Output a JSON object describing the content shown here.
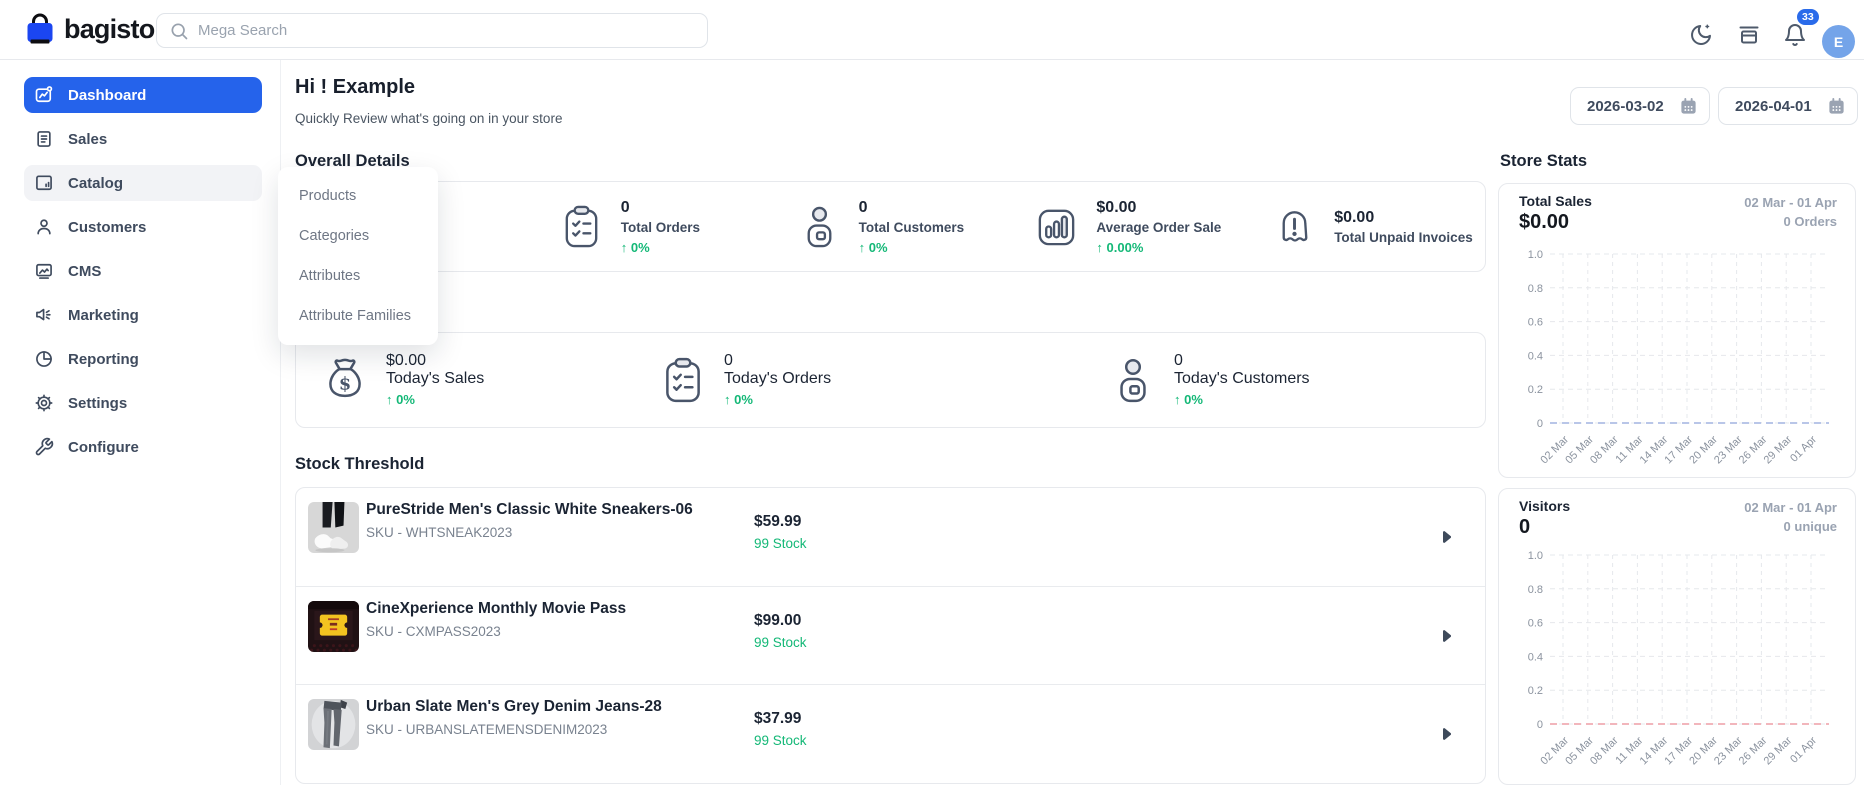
{
  "header": {
    "logo_text": "bagisto",
    "search_placeholder": "Mega Search",
    "notification_count": "33",
    "avatar_initial": "E"
  },
  "sidebar": {
    "items": [
      {
        "label": "Dashboard",
        "icon": "dashboard-icon",
        "state": "active"
      },
      {
        "label": "Sales",
        "icon": "sales-icon",
        "state": "normal"
      },
      {
        "label": "Catalog",
        "icon": "catalog-icon",
        "state": "hovered"
      },
      {
        "label": "Customers",
        "icon": "customers-icon",
        "state": "normal"
      },
      {
        "label": "CMS",
        "icon": "cms-icon",
        "state": "normal"
      },
      {
        "label": "Marketing",
        "icon": "marketing-icon",
        "state": "normal"
      },
      {
        "label": "Reporting",
        "icon": "reporting-icon",
        "state": "normal"
      },
      {
        "label": "Settings",
        "icon": "settings-icon",
        "state": "normal"
      },
      {
        "label": "Configure",
        "icon": "configure-icon",
        "state": "normal"
      }
    ]
  },
  "catalog_menu": {
    "items": [
      {
        "label": "Products"
      },
      {
        "label": "Categories"
      },
      {
        "label": "Attributes"
      },
      {
        "label": "Attribute Families"
      }
    ]
  },
  "page": {
    "greeting": "Hi ! Example",
    "subtitle": "Quickly Review what's going on in your store",
    "date_from": "2026-03-02",
    "date_to": "2026-04-01"
  },
  "overall_details": {
    "title": "Overall Details",
    "stats": [
      {
        "value": "0",
        "label": "Total Orders",
        "change": "0%",
        "icon": "clipboard-icon"
      },
      {
        "value": "0",
        "label": "Total Customers",
        "change": "0%",
        "icon": "customer-badge-icon"
      },
      {
        "value": "$0.00",
        "label": "Average Order Sale",
        "change": "0.00%",
        "icon": "bar-chart-icon"
      },
      {
        "value": "$0.00",
        "label": "Total Unpaid Invoices",
        "change": "",
        "icon": "invoice-ghost-icon"
      }
    ]
  },
  "today": {
    "stats": [
      {
        "value": "$0.00",
        "label": "Today's Sales",
        "change": "0%",
        "icon": "money-bag-icon"
      },
      {
        "value": "0",
        "label": "Today's Orders",
        "change": "0%",
        "icon": "clipboard-icon"
      },
      {
        "value": "0",
        "label": "Today's Customers",
        "change": "0%",
        "icon": "customer-badge-icon"
      }
    ]
  },
  "stock_threshold": {
    "title": "Stock Threshold",
    "products": [
      {
        "name": "PureStride Men's Classic White Sneakers-06",
        "sku": "SKU - WHTSNEAK2023",
        "price": "$59.99",
        "stock": "99 Stock"
      },
      {
        "name": "CineXperience Monthly Movie Pass",
        "sku": "SKU - CXMPASS2023",
        "price": "$99.00",
        "stock": "99 Stock"
      },
      {
        "name": "Urban Slate Men's Grey Denim Jeans-28",
        "sku": "SKU - URBANSLATEMENSDENIM2023",
        "price": "$37.99",
        "stock": "99 Stock"
      }
    ]
  },
  "store_stats": {
    "title": "Store Stats",
    "panels": [
      {
        "label": "Total Sales",
        "value": "$0.00",
        "range": "02 Mar - 01 Apr",
        "meta": "0 Orders"
      },
      {
        "label": "Visitors",
        "value": "0",
        "range": "02 Mar - 01 Apr",
        "meta": "0 unique"
      }
    ]
  },
  "colors": {
    "primary_blue": "#2563eb",
    "success_green": "#14b877",
    "sales_line": "#b9c6e8",
    "visitors_line": "#f2b6bc"
  },
  "chart_data": [
    {
      "type": "line",
      "title": "Total Sales",
      "x": [
        "02 Mar",
        "05 Mar",
        "08 Mar",
        "11 Mar",
        "14 Mar",
        "17 Mar",
        "20 Mar",
        "23 Mar",
        "26 Mar",
        "29 Mar",
        "01 Apr"
      ],
      "series": [
        {
          "name": "Total Sales",
          "values": [
            0,
            0,
            0,
            0,
            0,
            0,
            0,
            0,
            0,
            0,
            0
          ]
        }
      ],
      "ylim": [
        0,
        1.0
      ],
      "yticks": [
        "1.0",
        "0.8",
        "0.6",
        "0.4",
        "0.2",
        "0"
      ],
      "grid": true,
      "legend": "none",
      "line_color": "#b9c6e8",
      "line_style": "dashed"
    },
    {
      "type": "line",
      "title": "Visitors",
      "x": [
        "02 Mar",
        "05 Mar",
        "08 Mar",
        "11 Mar",
        "14 Mar",
        "17 Mar",
        "20 Mar",
        "23 Mar",
        "26 Mar",
        "29 Mar",
        "01 Apr"
      ],
      "series": [
        {
          "name": "Visitors",
          "values": [
            0,
            0,
            0,
            0,
            0,
            0,
            0,
            0,
            0,
            0,
            0
          ]
        }
      ],
      "ylim": [
        0,
        1.0
      ],
      "yticks": [
        "1.0",
        "0.8",
        "0.6",
        "0.4",
        "0.2",
        "0"
      ],
      "grid": true,
      "legend": "none",
      "line_color": "#f2b6bc",
      "line_style": "dashed"
    }
  ]
}
